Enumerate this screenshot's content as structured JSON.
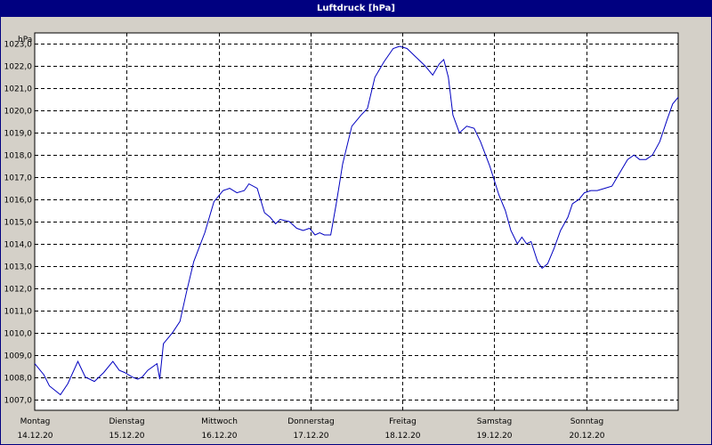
{
  "window": {
    "title": "Luftdruck [hPa]"
  },
  "colors": {
    "background": "#d4d0c8",
    "titlebar": "#000080",
    "line": "#0000c0",
    "grid": "#000000"
  },
  "chart_data": {
    "type": "line",
    "title": "Luftdruck [hPa]",
    "ylabel": "hPa",
    "xlabel": "",
    "ylim": [
      1006.5,
      1023.5
    ],
    "xlim": [
      0,
      7
    ],
    "yticks": [
      1007.0,
      1008.0,
      1009.0,
      1010.0,
      1011.0,
      1012.0,
      1013.0,
      1014.0,
      1015.0,
      1016.0,
      1017.0,
      1018.0,
      1019.0,
      1020.0,
      1021.0,
      1022.0,
      1023.0
    ],
    "ytick_labels": [
      "1007,0",
      "1008,0",
      "1009,0",
      "1010,0",
      "1011,0",
      "1012,0",
      "1013,0",
      "1014,0",
      "1015,0",
      "1016,0",
      "1017,0",
      "1018,0",
      "1019,0",
      "1020,0",
      "1021,0",
      "1022,0",
      "1023,0"
    ],
    "grid": true,
    "x_day_labels": [
      {
        "day": "Montag",
        "date": "14.12.20"
      },
      {
        "day": "Dienstag",
        "date": "15.12.20"
      },
      {
        "day": "Mittwoch",
        "date": "16.12.20"
      },
      {
        "day": "Donnerstag",
        "date": "17.12.20"
      },
      {
        "day": "Freitag",
        "date": "18.12.20"
      },
      {
        "day": "Samstag",
        "date": "19.12.20"
      },
      {
        "day": "Sonntag",
        "date": "20.12.20"
      }
    ],
    "series": [
      {
        "values": [
          [
            0.0,
            1008.6
          ],
          [
            0.1,
            1008.1
          ],
          [
            0.16,
            1007.6
          ],
          [
            0.28,
            1007.2
          ],
          [
            0.36,
            1007.7
          ],
          [
            0.47,
            1008.7
          ],
          [
            0.55,
            1008.0
          ],
          [
            0.65,
            1007.8
          ],
          [
            0.75,
            1008.2
          ],
          [
            0.85,
            1008.7
          ],
          [
            0.92,
            1008.3
          ],
          [
            0.98,
            1008.2
          ],
          [
            1.06,
            1008.0
          ],
          [
            1.12,
            1007.9
          ],
          [
            1.17,
            1008.0
          ],
          [
            1.23,
            1008.3
          ],
          [
            1.33,
            1008.6
          ],
          [
            1.36,
            1007.9
          ],
          [
            1.4,
            1009.5
          ],
          [
            1.5,
            1010.0
          ],
          [
            1.58,
            1010.5
          ],
          [
            1.65,
            1011.8
          ],
          [
            1.73,
            1013.2
          ],
          [
            1.85,
            1014.5
          ],
          [
            1.95,
            1015.9
          ],
          [
            2.05,
            1016.4
          ],
          [
            2.12,
            1016.5
          ],
          [
            2.2,
            1016.3
          ],
          [
            2.28,
            1016.4
          ],
          [
            2.33,
            1016.7
          ],
          [
            2.42,
            1016.5
          ],
          [
            2.5,
            1015.4
          ],
          [
            2.56,
            1015.2
          ],
          [
            2.62,
            1014.9
          ],
          [
            2.67,
            1015.1
          ],
          [
            2.77,
            1015.0
          ],
          [
            2.85,
            1014.7
          ],
          [
            2.92,
            1014.6
          ],
          [
            2.99,
            1014.7
          ],
          [
            3.05,
            1014.4
          ],
          [
            3.1,
            1014.5
          ],
          [
            3.15,
            1014.4
          ],
          [
            3.22,
            1014.4
          ],
          [
            3.28,
            1015.8
          ],
          [
            3.35,
            1017.6
          ],
          [
            3.45,
            1019.3
          ],
          [
            3.55,
            1019.8
          ],
          [
            3.62,
            1020.1
          ],
          [
            3.7,
            1021.5
          ],
          [
            3.8,
            1022.2
          ],
          [
            3.9,
            1022.8
          ],
          [
            3.97,
            1022.9
          ],
          [
            4.05,
            1022.8
          ],
          [
            4.15,
            1022.4
          ],
          [
            4.25,
            1022.0
          ],
          [
            4.33,
            1021.6
          ],
          [
            4.4,
            1022.1
          ],
          [
            4.45,
            1022.3
          ],
          [
            4.5,
            1021.5
          ],
          [
            4.55,
            1019.8
          ],
          [
            4.62,
            1019.0
          ],
          [
            4.7,
            1019.3
          ],
          [
            4.78,
            1019.2
          ],
          [
            4.85,
            1018.6
          ],
          [
            4.95,
            1017.5
          ],
          [
            5.05,
            1016.2
          ],
          [
            5.12,
            1015.5
          ],
          [
            5.18,
            1014.6
          ],
          [
            5.25,
            1014.0
          ],
          [
            5.3,
            1014.3
          ],
          [
            5.35,
            1014.0
          ],
          [
            5.4,
            1014.1
          ],
          [
            5.47,
            1013.2
          ],
          [
            5.52,
            1012.9
          ],
          [
            5.58,
            1013.1
          ],
          [
            5.65,
            1013.8
          ],
          [
            5.72,
            1014.6
          ],
          [
            5.8,
            1015.2
          ],
          [
            5.85,
            1015.8
          ],
          [
            5.92,
            1016.0
          ],
          [
            5.98,
            1016.3
          ],
          [
            6.05,
            1016.4
          ],
          [
            6.12,
            1016.4
          ],
          [
            6.2,
            1016.5
          ],
          [
            6.28,
            1016.6
          ],
          [
            6.35,
            1017.1
          ],
          [
            6.45,
            1017.8
          ],
          [
            6.52,
            1018.0
          ],
          [
            6.58,
            1017.8
          ],
          [
            6.65,
            1017.8
          ],
          [
            6.72,
            1018.0
          ],
          [
            6.8,
            1018.6
          ],
          [
            6.88,
            1019.6
          ],
          [
            6.94,
            1020.3
          ],
          [
            7.0,
            1020.6
          ]
        ]
      }
    ]
  }
}
